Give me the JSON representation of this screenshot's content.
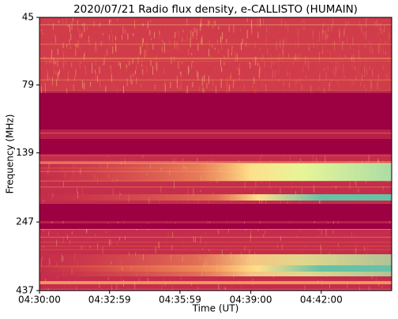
{
  "chart_data": {
    "type": "spectrogram",
    "title": "2020/07/21  Radio flux density, e-CALLISTO (HUMAIN)",
    "x_label": "Time (UT)",
    "y_label": "Frequency (MHz)",
    "xlim": [
      "04:30:00",
      "04:45:00"
    ],
    "xticks": [
      "04:30:00",
      "04:32:59",
      "04:35:59",
      "04:39:00",
      "04:42:00"
    ],
    "ylim": [
      45,
      437
    ],
    "yticks": [
      45,
      79,
      139,
      247,
      437
    ],
    "y_log": true,
    "y_inverted": true
  }
}
